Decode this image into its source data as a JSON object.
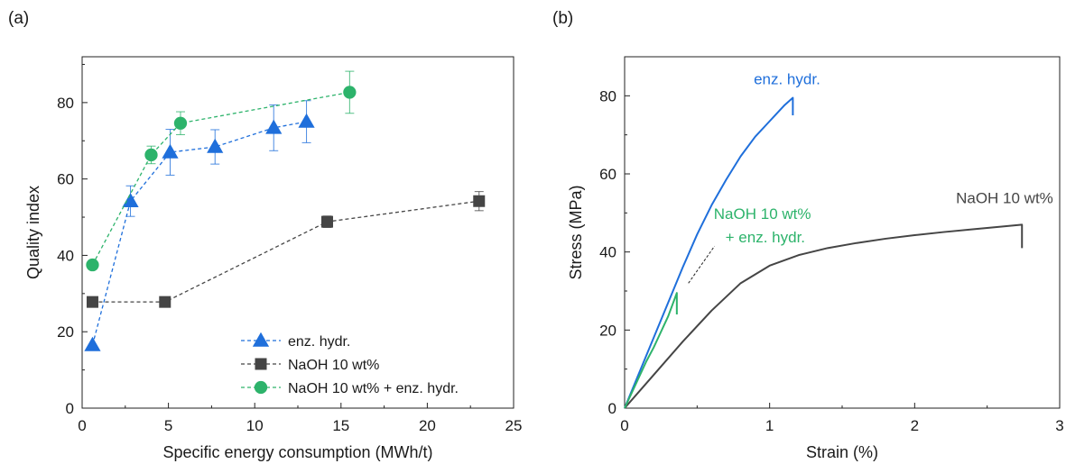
{
  "chart_data": [
    {
      "type": "scatter",
      "panel_label": "(a)",
      "xlabel": "Specific energy consumption (MWh/t)",
      "ylabel": "Quality index",
      "xlim": [
        0,
        25
      ],
      "ylim": [
        0,
        92
      ],
      "xticks": [
        0,
        5,
        10,
        15,
        20,
        25
      ],
      "yticks": [
        0,
        20,
        40,
        60,
        80
      ],
      "grid": false,
      "legend_position": "bottom-right",
      "series": [
        {
          "name": "enz. hydr.",
          "color": "#1f6fdb",
          "marker": "triangle",
          "line": "dashed",
          "x": [
            0.6,
            2.8,
            5.1,
            7.7,
            11.1,
            13.0
          ],
          "y": [
            16.5,
            54.2,
            67.0,
            68.4,
            73.4,
            75.0
          ],
          "err": [
            0,
            4.0,
            6.0,
            4.5,
            6.0,
            5.5
          ]
        },
        {
          "name": "NaOH 10 wt%",
          "color": "#454545",
          "marker": "square",
          "line": "dashed",
          "x": [
            0.6,
            4.8,
            14.2,
            23.0
          ],
          "y": [
            27.8,
            27.8,
            48.8,
            54.2
          ],
          "err": [
            0,
            0,
            1.5,
            2.5
          ]
        },
        {
          "name": "NaOH 10 wt% + enz. hydr.",
          "color": "#2db36b",
          "marker": "circle",
          "line": "dashed",
          "x": [
            0.6,
            4.0,
            5.7,
            15.5
          ],
          "y": [
            37.5,
            66.3,
            74.6,
            82.7
          ],
          "err": [
            0,
            2.3,
            3.0,
            5.5
          ]
        }
      ]
    },
    {
      "type": "line",
      "panel_label": "(b)",
      "xlabel": "Strain (%)",
      "ylabel": "Stress (MPa)",
      "xlim": [
        0,
        3
      ],
      "ylim": [
        0,
        90
      ],
      "xticks": [
        0,
        1,
        2,
        3
      ],
      "yticks": [
        0,
        20,
        40,
        60,
        80
      ],
      "grid": false,
      "series": [
        {
          "name": "enz. hydr.",
          "color": "#1f6fdb",
          "x": [
            0,
            0.1,
            0.2,
            0.3,
            0.4,
            0.5,
            0.6,
            0.7,
            0.8,
            0.9,
            1.0,
            1.1,
            1.16,
            1.16
          ],
          "y": [
            0,
            9,
            18,
            27,
            36,
            44.5,
            52,
            58.5,
            64.5,
            69.5,
            73.5,
            77.5,
            79.5,
            75
          ]
        },
        {
          "name": "NaOH 10 wt%",
          "color": "#454545",
          "x": [
            0,
            0.2,
            0.4,
            0.6,
            0.8,
            1.0,
            1.2,
            1.4,
            1.6,
            1.8,
            2.0,
            2.2,
            2.4,
            2.6,
            2.74,
            2.74
          ],
          "y": [
            0,
            8.5,
            17,
            25,
            32,
            36.5,
            39.2,
            41,
            42.3,
            43.4,
            44.3,
            45.1,
            45.8,
            46.5,
            47,
            41
          ]
        },
        {
          "name": "NaOH 10 wt%\n+ enz. hydr.",
          "color": "#2db36b",
          "x": [
            0,
            0.05,
            0.1,
            0.15,
            0.2,
            0.25,
            0.3,
            0.36,
            0.36
          ],
          "y": [
            0,
            4,
            8,
            12,
            15.5,
            19.5,
            23.5,
            29.5,
            24
          ]
        }
      ],
      "annotations": [
        {
          "text": "enz. hydr.",
          "color": "#1f6fdb",
          "x": 1.12,
          "y": 83
        },
        {
          "text": "NaOH 10 wt%",
          "color": "#454545",
          "x": 2.62,
          "y": 52.5
        },
        {
          "text": "NaOH 10 wt%",
          "color": "#2db36b",
          "x": 0.95,
          "y": 48.5
        },
        {
          "text": "+ enz. hydr.",
          "color": "#2db36b",
          "x": 0.97,
          "y": 42.5
        }
      ]
    }
  ]
}
